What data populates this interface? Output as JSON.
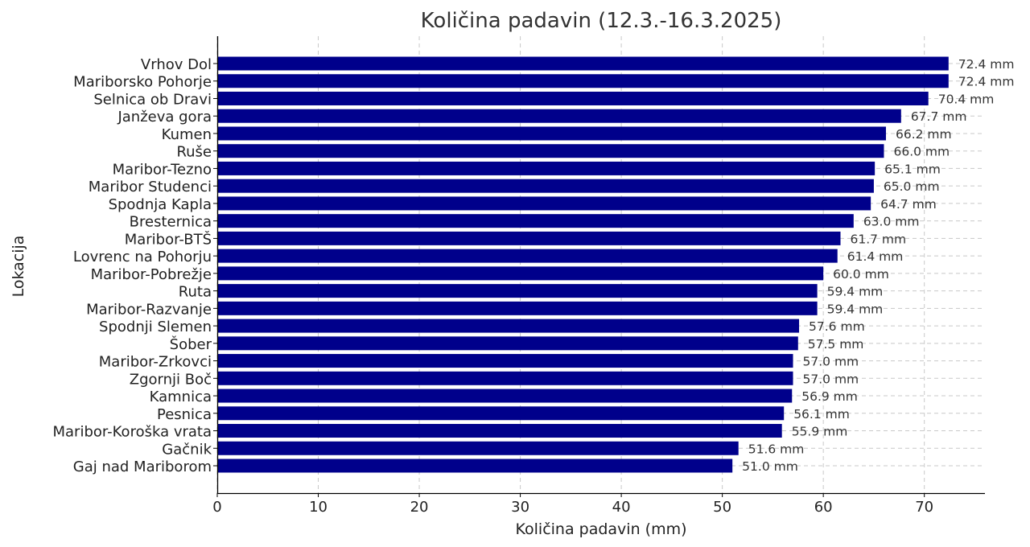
{
  "chart_data": {
    "type": "bar",
    "orientation": "horizontal",
    "title": "Količina padavin (12.3.-16.3.2025)",
    "xlabel": "Količina padavin (mm)",
    "ylabel": "Lokacija",
    "xlim": [
      0,
      76
    ],
    "xticks": [
      0,
      10,
      20,
      30,
      40,
      50,
      60,
      70
    ],
    "grid": true,
    "bar_color": "#00008B",
    "value_suffix": " mm",
    "categories": [
      "Vrhov Dol",
      "Mariborsko Pohorje",
      "Selnica ob Dravi",
      "Janževa gora",
      "Kumen",
      "Ruše",
      "Maribor-Tezno",
      "Maribor Studenci",
      "Spodnja Kapla",
      "Bresternica",
      "Maribor-BTŠ",
      "Lovrenc na Pohorju",
      "Maribor-Pobrežje",
      "Ruta",
      "Maribor-Razvanje",
      "Spodnji Slemen",
      "Šober",
      "Maribor-Zrkovci",
      "Zgornji Boč",
      "Kamnica",
      "Pesnica",
      "Maribor-Koroška vrata",
      "Gačnik",
      "Gaj nad Mariborom"
    ],
    "values": [
      72.4,
      72.4,
      70.4,
      67.7,
      66.2,
      66.0,
      65.1,
      65.0,
      64.7,
      63.0,
      61.7,
      61.4,
      60.0,
      59.4,
      59.4,
      57.6,
      57.5,
      57.0,
      57.0,
      56.9,
      56.1,
      55.9,
      51.6,
      51.0
    ],
    "data_labels": [
      "72.4 mm",
      "72.4 mm",
      "70.4 mm",
      "67.7 mm",
      "66.2 mm",
      "66.0 mm",
      "65.1 mm",
      "65.0 mm",
      "64.7 mm",
      "63.0 mm",
      "61.7 mm",
      "61.4 mm",
      "60.0 mm",
      "59.4 mm",
      "59.4 mm",
      "57.6 mm",
      "57.5 mm",
      "57.0 mm",
      "57.0 mm",
      "56.9 mm",
      "56.1 mm",
      "55.9 mm",
      "51.6 mm",
      "51.0 mm"
    ]
  }
}
